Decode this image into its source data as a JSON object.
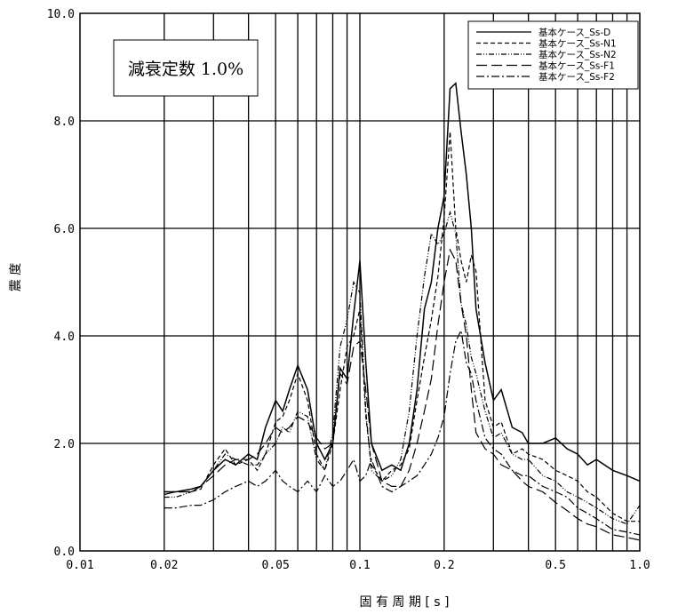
{
  "chart_data": {
    "type": "line",
    "title": "",
    "xlabel": "固 有 周 期 [ s ]",
    "ylabel": "震 度",
    "x_scale": "log",
    "xlim": [
      0.01,
      1.0
    ],
    "ylim": [
      0.0,
      10.0
    ],
    "grid": true,
    "legend_position": "top-right",
    "annotation": "減衰定数 1.0%",
    "x_ticks": [
      {
        "value": 0.01,
        "label": "0.01"
      },
      {
        "value": 0.02,
        "label": "0.02"
      },
      {
        "value": 0.05,
        "label": "0.05"
      },
      {
        "value": 0.1,
        "label": "0.1"
      },
      {
        "value": 0.2,
        "label": "0.2"
      },
      {
        "value": 0.5,
        "label": "0.5"
      },
      {
        "value": 1.0,
        "label": "1.0"
      }
    ],
    "y_ticks": [
      {
        "value": 0,
        "label": "0.0"
      },
      {
        "value": 2,
        "label": "2.0"
      },
      {
        "value": 4,
        "label": "4.0"
      },
      {
        "value": 6,
        "label": "6.0"
      },
      {
        "value": 8,
        "label": "8.0"
      },
      {
        "value": 10,
        "label": "10.0"
      }
    ],
    "series": [
      {
        "name": "基本ケース_Ss-D",
        "dash": "",
        "x": [
          0.02,
          0.022,
          0.025,
          0.027,
          0.03,
          0.033,
          0.036,
          0.04,
          0.043,
          0.046,
          0.05,
          0.053,
          0.056,
          0.06,
          0.065,
          0.07,
          0.075,
          0.08,
          0.085,
          0.09,
          0.095,
          0.1,
          0.105,
          0.11,
          0.12,
          0.13,
          0.14,
          0.15,
          0.16,
          0.17,
          0.18,
          0.19,
          0.2,
          0.21,
          0.22,
          0.23,
          0.24,
          0.25,
          0.26,
          0.28,
          0.3,
          0.32,
          0.35,
          0.38,
          0.4,
          0.45,
          0.5,
          0.55,
          0.6,
          0.65,
          0.7,
          0.8,
          0.9,
          1.0
        ],
        "y": [
          1.1,
          1.1,
          1.15,
          1.2,
          1.5,
          1.7,
          1.6,
          1.8,
          1.7,
          2.3,
          2.8,
          2.6,
          3.0,
          3.45,
          3.0,
          2.0,
          1.7,
          2.0,
          3.4,
          3.2,
          4.4,
          5.4,
          3.5,
          2.0,
          1.5,
          1.6,
          1.5,
          2.0,
          3.0,
          4.5,
          5.0,
          6.0,
          6.6,
          8.6,
          8.7,
          7.8,
          7.0,
          6.0,
          4.5,
          3.5,
          2.8,
          3.0,
          2.3,
          2.2,
          2.0,
          2.0,
          2.1,
          1.9,
          1.8,
          1.6,
          1.7,
          1.5,
          1.4,
          1.3
        ]
      },
      {
        "name": "基本ケース_Ss-N1",
        "dash": "5,3",
        "x": [
          0.02,
          0.022,
          0.025,
          0.027,
          0.03,
          0.033,
          0.036,
          0.04,
          0.043,
          0.046,
          0.05,
          0.053,
          0.056,
          0.06,
          0.065,
          0.07,
          0.075,
          0.08,
          0.085,
          0.09,
          0.095,
          0.1,
          0.105,
          0.11,
          0.12,
          0.13,
          0.14,
          0.15,
          0.16,
          0.17,
          0.18,
          0.19,
          0.2,
          0.21,
          0.22,
          0.23,
          0.24,
          0.25,
          0.26,
          0.28,
          0.3,
          0.32,
          0.35,
          0.38,
          0.4,
          0.45,
          0.5,
          0.55,
          0.6,
          0.65,
          0.7,
          0.8,
          0.9,
          1.0
        ],
        "y": [
          1.1,
          1.1,
          1.1,
          1.15,
          1.6,
          1.9,
          1.6,
          1.7,
          1.5,
          1.8,
          2.4,
          2.5,
          2.8,
          3.3,
          2.8,
          1.8,
          1.5,
          2.0,
          3.0,
          3.8,
          4.0,
          4.5,
          2.5,
          1.6,
          1.3,
          1.5,
          1.6,
          1.9,
          2.8,
          3.6,
          4.3,
          5.1,
          6.2,
          7.8,
          6.0,
          5.4,
          5.0,
          5.5,
          5.2,
          2.8,
          2.3,
          2.4,
          1.8,
          1.9,
          1.8,
          1.7,
          1.5,
          1.4,
          1.3,
          1.1,
          1.0,
          0.7,
          0.55,
          0.55
        ]
      },
      {
        "name": "基本ケース_Ss-N2",
        "dash": "6,2,1,2,1,2",
        "x": [
          0.02,
          0.022,
          0.025,
          0.027,
          0.03,
          0.033,
          0.036,
          0.04,
          0.043,
          0.046,
          0.05,
          0.053,
          0.056,
          0.06,
          0.065,
          0.07,
          0.075,
          0.08,
          0.085,
          0.09,
          0.095,
          0.1,
          0.105,
          0.11,
          0.12,
          0.13,
          0.14,
          0.15,
          0.16,
          0.17,
          0.18,
          0.19,
          0.2,
          0.21,
          0.22,
          0.23,
          0.24,
          0.25,
          0.26,
          0.28,
          0.3,
          0.32,
          0.35,
          0.38,
          0.4,
          0.45,
          0.5,
          0.55,
          0.6,
          0.65,
          0.7,
          0.8,
          0.9,
          1.0
        ],
        "y": [
          1.0,
          1.0,
          1.1,
          1.2,
          1.5,
          1.8,
          1.7,
          1.6,
          1.6,
          1.8,
          2.0,
          2.3,
          2.2,
          2.6,
          2.5,
          1.7,
          1.5,
          2.2,
          3.8,
          4.3,
          5.0,
          4.8,
          2.6,
          1.5,
          1.3,
          1.4,
          1.7,
          2.6,
          4.0,
          5.1,
          5.9,
          5.7,
          5.9,
          6.3,
          5.9,
          4.6,
          4.2,
          3.6,
          3.3,
          2.6,
          2.1,
          2.2,
          1.8,
          1.7,
          1.7,
          1.4,
          1.3,
          1.1,
          1.0,
          0.9,
          0.8,
          0.6,
          0.5,
          0.85
        ]
      },
      {
        "name": "基本ケース_Ss-F1",
        "dash": "12,5",
        "x": [
          0.02,
          0.022,
          0.025,
          0.027,
          0.03,
          0.033,
          0.036,
          0.04,
          0.043,
          0.046,
          0.05,
          0.053,
          0.056,
          0.06,
          0.065,
          0.07,
          0.075,
          0.08,
          0.085,
          0.09,
          0.095,
          0.1,
          0.105,
          0.11,
          0.12,
          0.13,
          0.14,
          0.15,
          0.16,
          0.17,
          0.18,
          0.19,
          0.2,
          0.21,
          0.22,
          0.23,
          0.24,
          0.25,
          0.26,
          0.28,
          0.3,
          0.32,
          0.35,
          0.38,
          0.4,
          0.45,
          0.5,
          0.55,
          0.6,
          0.65,
          0.7,
          0.8,
          0.9,
          1.0
        ],
        "y": [
          1.05,
          1.1,
          1.1,
          1.2,
          1.4,
          1.6,
          1.7,
          1.7,
          1.8,
          2.0,
          2.3,
          2.2,
          2.3,
          2.5,
          2.4,
          2.1,
          1.9,
          2.0,
          3.3,
          3.1,
          3.8,
          3.9,
          3.0,
          2.0,
          1.3,
          1.2,
          1.2,
          1.5,
          2.0,
          2.6,
          3.2,
          4.2,
          5.0,
          5.6,
          5.4,
          4.6,
          4.0,
          3.0,
          2.2,
          1.9,
          1.8,
          1.6,
          1.5,
          1.3,
          1.2,
          1.1,
          0.9,
          0.75,
          0.6,
          0.5,
          0.45,
          0.3,
          0.25,
          0.2
        ]
      },
      {
        "name": "基本ケース_Ss-F2",
        "dash": "9,3,2,3",
        "x": [
          0.02,
          0.022,
          0.025,
          0.027,
          0.03,
          0.033,
          0.036,
          0.04,
          0.043,
          0.046,
          0.05,
          0.053,
          0.056,
          0.06,
          0.065,
          0.07,
          0.075,
          0.08,
          0.085,
          0.09,
          0.095,
          0.1,
          0.105,
          0.11,
          0.12,
          0.13,
          0.14,
          0.15,
          0.16,
          0.17,
          0.18,
          0.19,
          0.2,
          0.21,
          0.22,
          0.23,
          0.24,
          0.25,
          0.26,
          0.28,
          0.3,
          0.32,
          0.35,
          0.38,
          0.4,
          0.45,
          0.5,
          0.55,
          0.6,
          0.65,
          0.7,
          0.8,
          0.9,
          1.0
        ],
        "y": [
          0.8,
          0.8,
          0.85,
          0.85,
          0.95,
          1.1,
          1.2,
          1.3,
          1.2,
          1.3,
          1.5,
          1.3,
          1.2,
          1.1,
          1.3,
          1.1,
          1.4,
          1.2,
          1.3,
          1.5,
          1.7,
          1.3,
          1.4,
          1.7,
          1.2,
          1.1,
          1.2,
          1.3,
          1.4,
          1.6,
          1.8,
          2.1,
          2.5,
          3.3,
          3.9,
          4.1,
          3.5,
          3.3,
          2.8,
          2.1,
          1.9,
          1.8,
          1.5,
          1.4,
          1.4,
          1.2,
          1.1,
          1.0,
          0.8,
          0.7,
          0.6,
          0.4,
          0.35,
          0.3
        ]
      }
    ]
  }
}
